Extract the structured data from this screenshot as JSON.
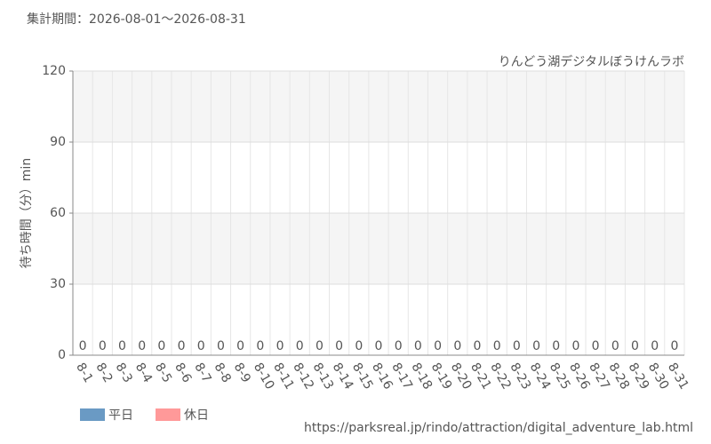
{
  "chart_data": {
    "type": "bar",
    "header": "集計期間：2026-08-01～2026-08-31",
    "subtitle": "りんどう湖デジタルぼうけんラボ",
    "y_label": "待ち時間（分）min",
    "source": "https://parksreal.jp/rindo/attraction/digital_adventure_lab.html",
    "categories": [
      "8-1",
      "8-2",
      "8-3",
      "8-4",
      "8-5",
      "8-6",
      "8-7",
      "8-8",
      "8-9",
      "8-10",
      "8-11",
      "8-12",
      "8-13",
      "8-14",
      "8-15",
      "8-16",
      "8-17",
      "8-18",
      "8-19",
      "8-20",
      "8-21",
      "8-22",
      "8-23",
      "8-24",
      "8-25",
      "8-26",
      "8-27",
      "8-28",
      "8-29",
      "8-30",
      "8-31"
    ],
    "series": [
      {
        "name": "平日",
        "color": "#6a9ac4",
        "values": [
          null,
          null,
          0,
          0,
          0,
          0,
          0,
          null,
          null,
          0,
          null,
          0,
          0,
          0,
          null,
          null,
          0,
          0,
          0,
          0,
          0,
          null,
          null,
          0,
          0,
          0,
          0,
          0,
          null,
          null,
          0
        ]
      },
      {
        "name": "休日",
        "color": "#ff9999",
        "values": [
          0,
          0,
          null,
          null,
          null,
          null,
          null,
          0,
          0,
          null,
          0,
          null,
          null,
          null,
          0,
          0,
          null,
          null,
          null,
          null,
          null,
          0,
          0,
          null,
          null,
          null,
          null,
          null,
          0,
          0,
          null
        ]
      }
    ],
    "ylim": [
      0,
      120
    ],
    "yticks": [
      0,
      30,
      60,
      90,
      120
    ],
    "grid": true,
    "legend": "bottom-left"
  }
}
